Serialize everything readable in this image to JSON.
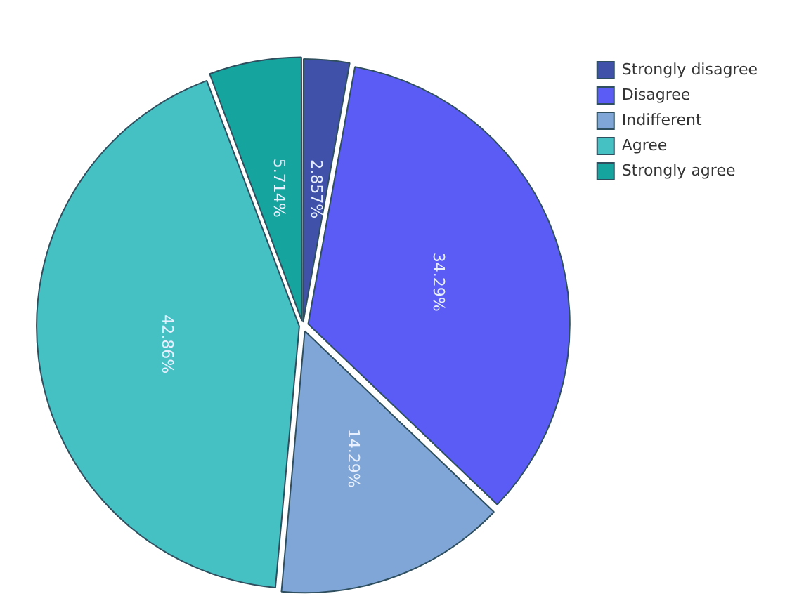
{
  "chart_data": {
    "type": "pie",
    "categories": [
      "Strongly disagree",
      "Disagree",
      "Indifferent",
      "Agree",
      "Strongly agree"
    ],
    "values": [
      2.857,
      34.29,
      14.29,
      42.86,
      5.714
    ],
    "value_labels": [
      "2.857%",
      "34.29%",
      "14.29%",
      "42.86%",
      "5.714%"
    ],
    "colors": [
      "#3f51a8",
      "#5b5cf5",
      "#7fa6d6",
      "#45c1c4",
      "#15a59e"
    ],
    "legend": "top right"
  }
}
